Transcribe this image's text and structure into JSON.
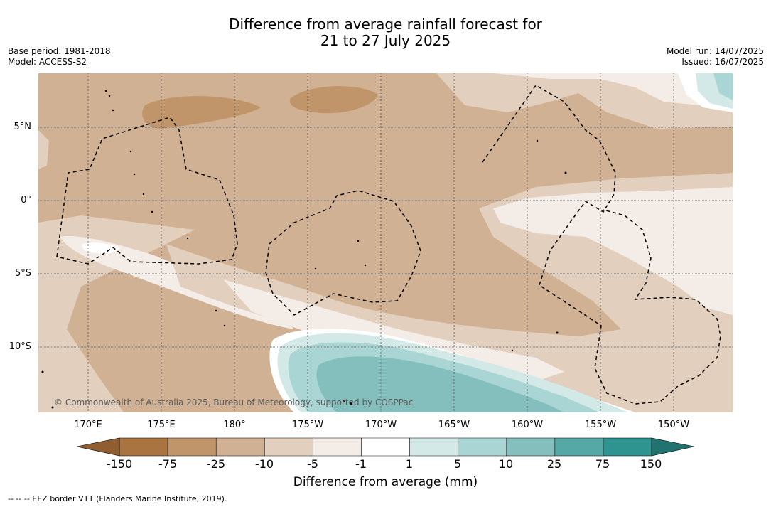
{
  "title": {
    "line1": "Difference from average rainfall forecast for",
    "line2": "21 to 27 July 2025"
  },
  "meta_left": {
    "base_period": "Base period: 1981-2018",
    "model": "Model: ACCESS-S2"
  },
  "meta_right": {
    "model_run": "Model run: 14/07/2025",
    "issued": "Issued: 16/07/2025"
  },
  "map": {
    "lon_labels": [
      "170°E",
      "175°E",
      "180°",
      "175°W",
      "170°W",
      "165°W",
      "160°W",
      "155°W",
      "150°W"
    ],
    "lat_labels": [
      "5°N",
      "0°",
      "5°S",
      "10°S"
    ],
    "copyright": "© Commonwealth of Australia 2025, Bureau of Meteorology, supported by COSPPac",
    "colors": {
      "dry_150": "#a97440",
      "dry_75": "#c0956a",
      "dry_25": "#d0b193",
      "dry_10": "#e2cfbe",
      "dry_5": "#f4ece7",
      "neutral": "#ffffff",
      "wet_5": "#d3e9e7",
      "wet_10": "#a9d6d4",
      "wet_25": "#84bfbe",
      "wet_75": "#55a8a5",
      "wet_150": "#2f938f"
    }
  },
  "colorbar": {
    "ticks": [
      "-150",
      "-75",
      "-25",
      "-10",
      "-5",
      "-1",
      "1",
      "5",
      "10",
      "25",
      "75",
      "150"
    ],
    "segment_colors": [
      "#a97440",
      "#c0956a",
      "#d0b193",
      "#e2cfbe",
      "#f4ece7",
      "#ffffff",
      "#d3e9e7",
      "#a9d6d4",
      "#84bfbe",
      "#55a8a5",
      "#2f938f"
    ],
    "extend_low_color": "#8f5d2f",
    "extend_high_color": "#21736f",
    "title": "Difference from average (mm)"
  },
  "footer": {
    "eez_note": "--  --  -- EEZ border V11 (Flanders Marine Institute, 2019)."
  }
}
